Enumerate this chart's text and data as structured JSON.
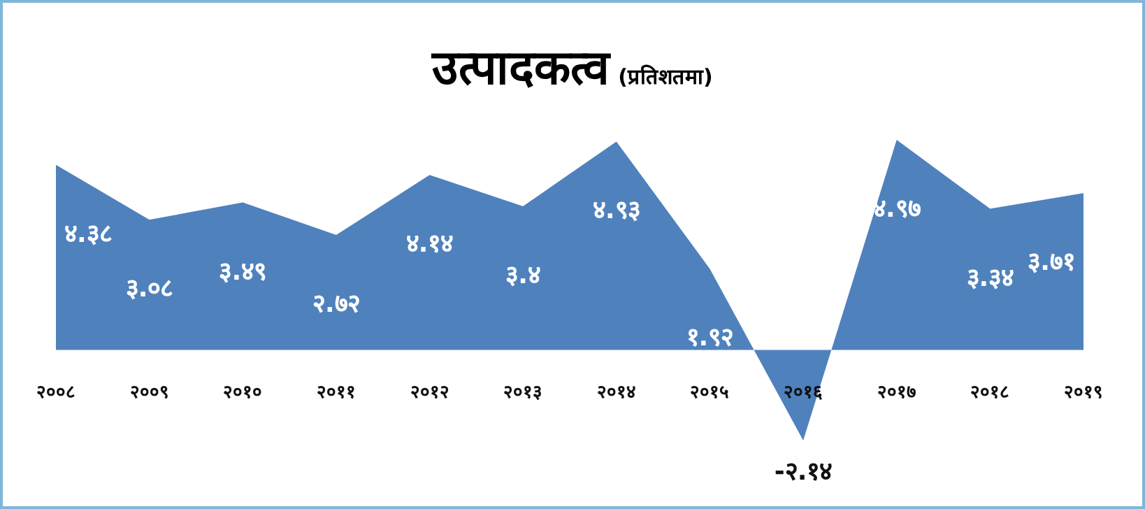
{
  "chart_data": {
    "type": "area",
    "title": "उत्पादकत्व",
    "subtitle": "(प्रतिशतमा)",
    "categories": [
      "२००८",
      "२००९",
      "२०१०",
      "२०११",
      "२०१२",
      "२०१३",
      "२०१४",
      "२०१५",
      "२०१६",
      "२०१७",
      "२०१८",
      "२०१९"
    ],
    "values": [
      4.38,
      3.08,
      3.49,
      2.72,
      4.14,
      3.4,
      4.93,
      1.92,
      -2.14,
      4.97,
      3.34,
      3.71
    ],
    "value_labels": [
      "४.३८",
      "३.०८",
      "३.४९",
      "२.७२",
      "४.१४",
      "३.४",
      "४.९३",
      "१.९२",
      "-२.१४",
      "४.९७",
      "३.३४",
      "३.७१"
    ],
    "color": "#4f81bd",
    "grid": false,
    "legend": false
  }
}
